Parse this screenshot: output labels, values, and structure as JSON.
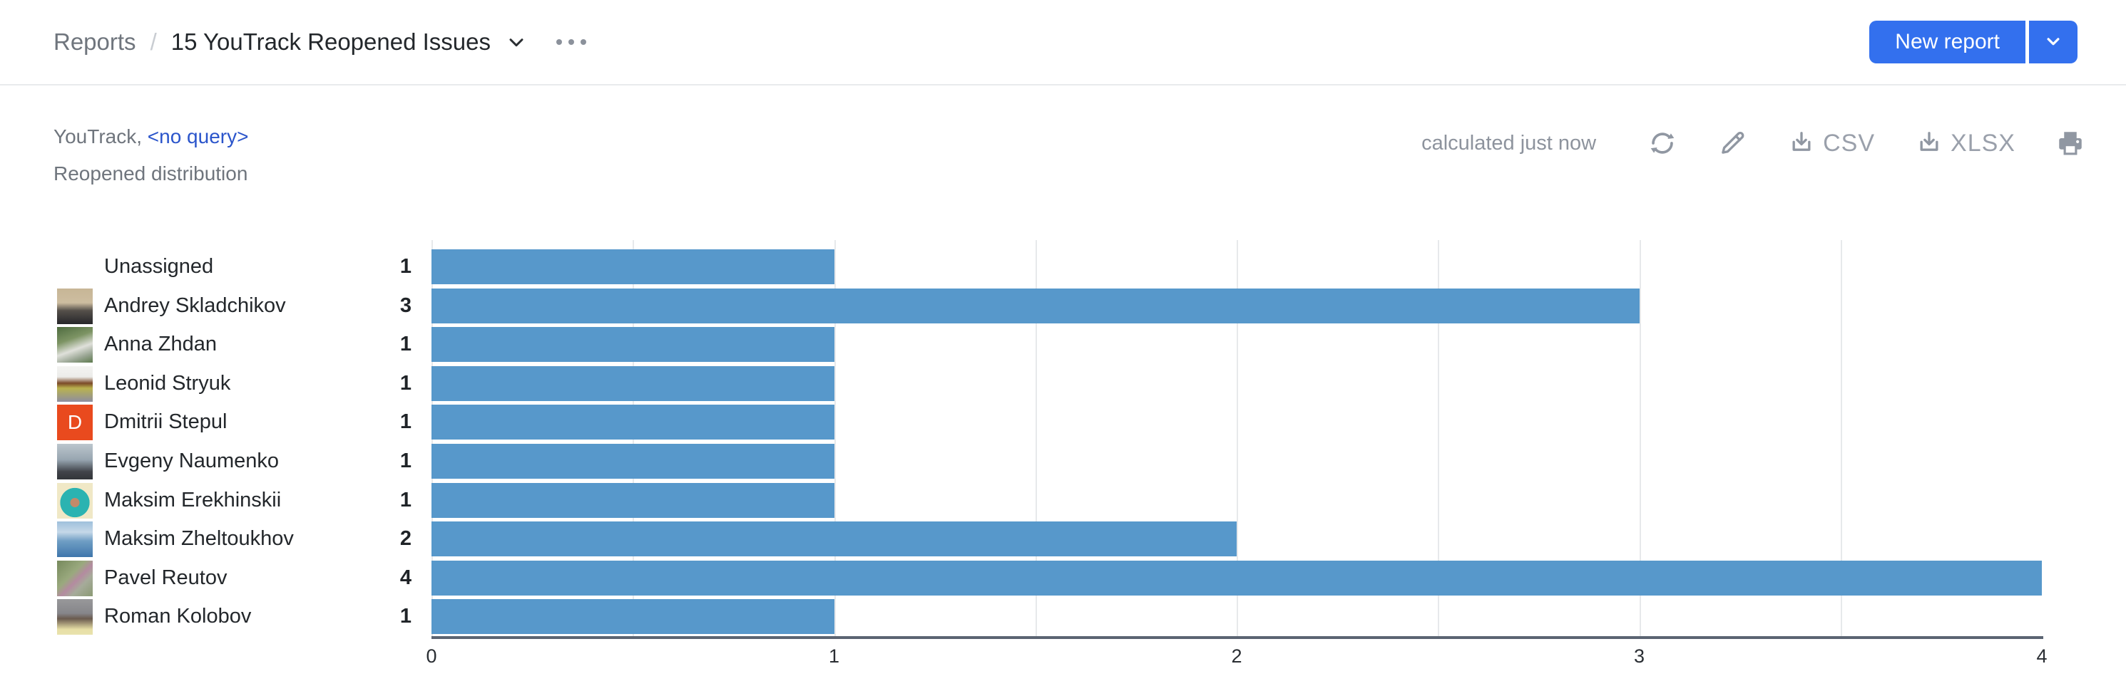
{
  "header": {
    "breadcrumb": {
      "section": "Reports",
      "separator": "/",
      "title": "15 YouTrack Reopened Issues"
    },
    "new_report": {
      "label": "New report",
      "color": "#3370ee"
    }
  },
  "report": {
    "context_prefix": "YouTrack,",
    "query_link": "<no query>",
    "subtitle": "Reopened distribution",
    "status": "calculated just now",
    "export": {
      "csv_label": "CSV",
      "xlsx_label": "XLSX"
    }
  },
  "chart_data": {
    "type": "bar",
    "orientation": "horizontal",
    "title": "Reopened distribution",
    "categories": [
      "Unassigned",
      "Andrey Skladchikov",
      "Anna Zhdan",
      "Leonid Stryuk",
      "Dmitrii Stepul",
      "Evgeny Naumenko",
      "Maksim Erekhinskii",
      "Maksim Zheltoukhov",
      "Pavel Reutov",
      "Roman Kolobov"
    ],
    "values": [
      1,
      3,
      1,
      1,
      1,
      1,
      1,
      2,
      4,
      1
    ],
    "xlabel": "",
    "ylabel": "",
    "xlim": [
      0,
      4
    ],
    "x_ticks": [
      0,
      1,
      2,
      3,
      4
    ],
    "gridlines_at": [
      0,
      0.5,
      1,
      1.5,
      2,
      2.5,
      3,
      3.5
    ],
    "grid": true,
    "legend": false,
    "bar_color": "#5798cb",
    "axis_color": "#5b6472",
    "rows": [
      {
        "name": "Unassigned",
        "value": 1,
        "avatar": {
          "type": "none"
        }
      },
      {
        "name": "Andrey Skladchikov",
        "value": 3,
        "avatar": {
          "type": "photo",
          "gradient": "linear-gradient(180deg,#c7b696 0%,#cdbda0 40%,#55504a 62%,#26262a 100%)"
        }
      },
      {
        "name": "Anna Zhdan",
        "value": 1,
        "avatar": {
          "type": "photo",
          "gradient": "linear-gradient(160deg,#4e6b3f 0%,#7d9464 35%,#dfe0da 60%,#9aa694 80%,#5d7a4d 100%)"
        }
      },
      {
        "name": "Leonid Stryuk",
        "value": 1,
        "avatar": {
          "type": "photo",
          "gradient": "linear-gradient(180deg,#f4f4f2 0%,#ececea 30%,#7b4a28 48%,#b9b24e 62%,#8e8ea0 100%)"
        }
      },
      {
        "name": "Dmitrii Stepul",
        "value": 1,
        "avatar": {
          "type": "letter",
          "letter": "D",
          "color": "#e94a1e"
        }
      },
      {
        "name": "Evgeny Naumenko",
        "value": 1,
        "avatar": {
          "type": "photo",
          "gradient": "linear-gradient(180deg,#bcc6cd 0%,#97a5b0 45%,#41444a 78%,#323539 100%)"
        }
      },
      {
        "name": "Maksim Erekhinskii",
        "value": 1,
        "avatar": {
          "type": "photo",
          "gradient": "radial-gradient(circle at 50% 55%,#c28a6a 0 17%,#2bb3b1 18% 55%,#f0e8c6 56% 100%)"
        }
      },
      {
        "name": "Maksim Zheltoukhov",
        "value": 2,
        "avatar": {
          "type": "photo",
          "gradient": "linear-gradient(180deg,#9fc0dc 0%,#c5d8e8 30%,#6f9ec4 55%,#3f76ab 100%)"
        }
      },
      {
        "name": "Pavel Reutov",
        "value": 4,
        "avatar": {
          "type": "photo",
          "gradient": "linear-gradient(135deg,#76895c 0%,#9aa97e 40%,#b48ba0 55%,#a6ab9a 70%,#8b9a74 100%)"
        }
      },
      {
        "name": "Roman Kolobov",
        "value": 1,
        "avatar": {
          "type": "photo",
          "gradient": "linear-gradient(180deg,#98989a 0%,#86868a 40%,#6a5a4e 55%,#e7dfa6 85%,#e9e2ad 100%)"
        }
      }
    ]
  }
}
